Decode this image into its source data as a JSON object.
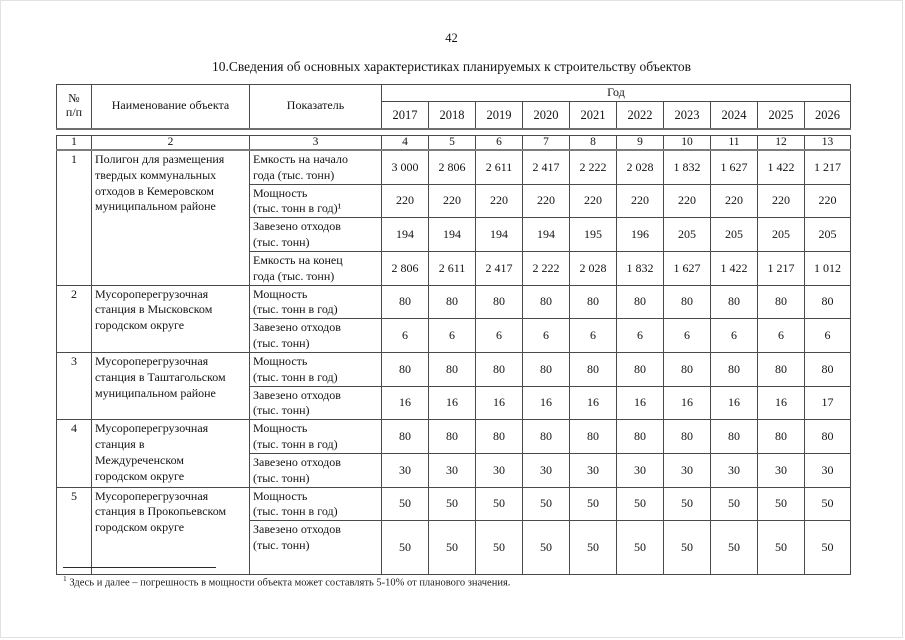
{
  "page": {
    "number": "42",
    "title": "10.Сведения об основных характеристиках планируемых к строительству объектов"
  },
  "table": {
    "header": {
      "num": "№\nп/п",
      "name": "Наименование объекта",
      "indicator": "Показатель",
      "year_group": "Год",
      "years": [
        "2017",
        "2018",
        "2019",
        "2020",
        "2021",
        "2022",
        "2023",
        "2024",
        "2025",
        "2026"
      ]
    },
    "column_numbers": [
      "1",
      "2",
      "3",
      "4",
      "5",
      "6",
      "7",
      "8",
      "9",
      "10",
      "11",
      "12",
      "13"
    ],
    "rows": [
      {
        "num": "1",
        "name": "Полигон для размещения\nтвердых коммунальных\nотходов в Кемеровском\nмуниципальном районе",
        "indicators": [
          {
            "label": "Емкость на начало\nгода (тыс. тонн)",
            "values": [
              "3 000",
              "2 806",
              "2 611",
              "2 417",
              "2 222",
              "2 028",
              "1 832",
              "1 627",
              "1 422",
              "1 217"
            ]
          },
          {
            "label": "Мощность\n(тыс. тонн в год)¹",
            "values": [
              "220",
              "220",
              "220",
              "220",
              "220",
              "220",
              "220",
              "220",
              "220",
              "220"
            ]
          },
          {
            "label": "Завезено отходов\n(тыс. тонн)",
            "values": [
              "194",
              "194",
              "194",
              "194",
              "195",
              "196",
              "205",
              "205",
              "205",
              "205"
            ]
          },
          {
            "label": "Емкость на конец\nгода (тыс. тонн)",
            "values": [
              "2 806",
              "2 611",
              "2 417",
              "2 222",
              "2 028",
              "1 832",
              "1 627",
              "1 422",
              "1 217",
              "1 012"
            ]
          }
        ]
      },
      {
        "num": "2",
        "name": "Мусороперегрузочная\nстанция в Мысковском\nгородском округе",
        "indicators": [
          {
            "label": "Мощность\n(тыс. тонн в год)",
            "values": [
              "80",
              "80",
              "80",
              "80",
              "80",
              "80",
              "80",
              "80",
              "80",
              "80"
            ]
          },
          {
            "label": "Завезено отходов\n(тыс. тонн)",
            "values": [
              "6",
              "6",
              "6",
              "6",
              "6",
              "6",
              "6",
              "6",
              "6",
              "6"
            ]
          }
        ]
      },
      {
        "num": "3",
        "name": "Мусороперегрузочная\nстанция в Таштагольском\nмуниципальном районе",
        "indicators": [
          {
            "label": "Мощность\n(тыс. тонн в год)",
            "values": [
              "80",
              "80",
              "80",
              "80",
              "80",
              "80",
              "80",
              "80",
              "80",
              "80"
            ]
          },
          {
            "label": "Завезено отходов\n(тыс. тонн)",
            "values": [
              "16",
              "16",
              "16",
              "16",
              "16",
              "16",
              "16",
              "16",
              "16",
              "17"
            ]
          }
        ]
      },
      {
        "num": "4",
        "name": "Мусороперегрузочная\nстанция в\nМеждуреченском\nгородском округе",
        "indicators": [
          {
            "label": "Мощность\n(тыс. тонн в год)",
            "values": [
              "80",
              "80",
              "80",
              "80",
              "80",
              "80",
              "80",
              "80",
              "80",
              "80"
            ]
          },
          {
            "label": "Завезено отходов\n(тыс. тонн)",
            "values": [
              "30",
              "30",
              "30",
              "30",
              "30",
              "30",
              "30",
              "30",
              "30",
              "30"
            ]
          }
        ]
      },
      {
        "num": "5",
        "name": "Мусороперегрузочная\nстанция в Прокопьевском\nгородском округе",
        "indicators": [
          {
            "label": "Мощность\n(тыс. тонн в год)",
            "values": [
              "50",
              "50",
              "50",
              "50",
              "50",
              "50",
              "50",
              "50",
              "50",
              "50"
            ]
          },
          {
            "label": "Завезено отходов\n(тыс. тонн)",
            "tall": true,
            "values": [
              "50",
              "50",
              "50",
              "50",
              "50",
              "50",
              "50",
              "50",
              "50",
              "50"
            ]
          }
        ]
      }
    ]
  },
  "footnote": {
    "marker": "1",
    "text": "Здесь и далее – погрешность в мощности объекта может составлять 5-10% от планового значения."
  }
}
